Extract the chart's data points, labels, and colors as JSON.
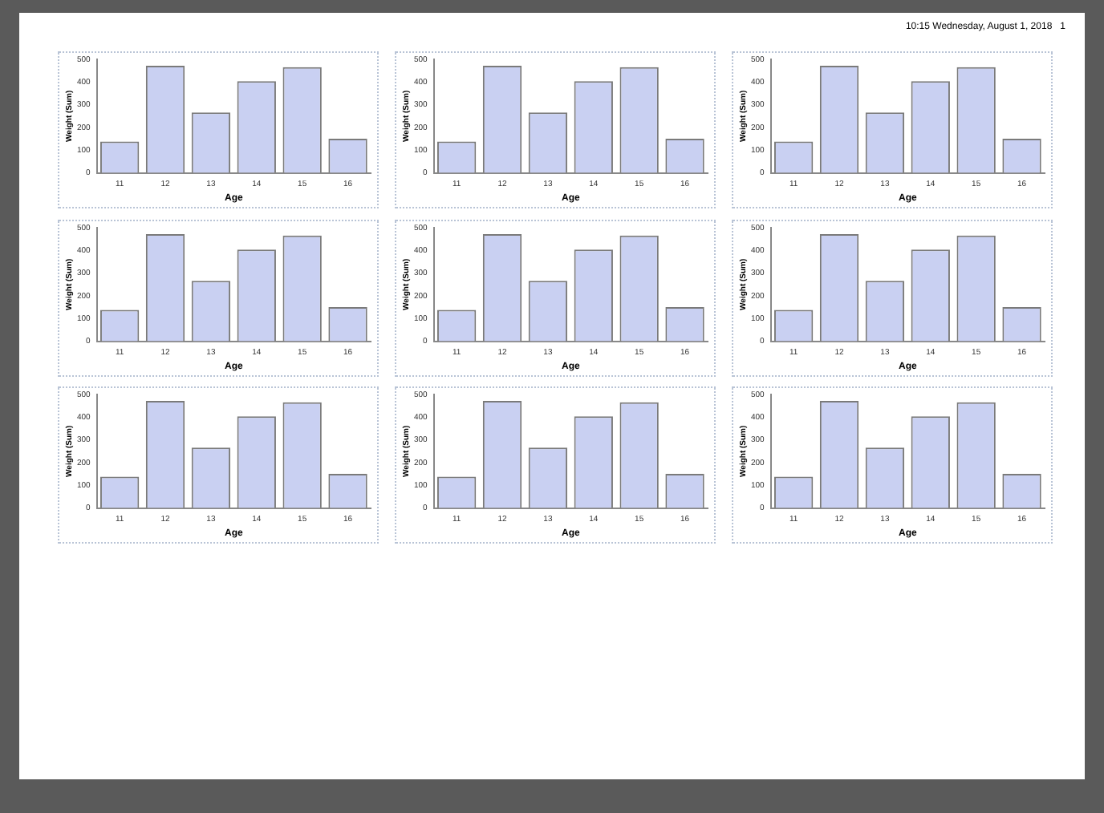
{
  "chart_data": [
    {
      "type": "bar",
      "xlabel": "Age",
      "ylabel": "Weight (Sum)",
      "categories": [
        "11",
        "12",
        "13",
        "14",
        "15",
        "16"
      ],
      "values": [
        138,
        472,
        266,
        404,
        466,
        150
      ],
      "color": "#c9d0f2",
      "ylim": [
        0,
        500
      ],
      "yticks": [
        0,
        100,
        200,
        300,
        400,
        500
      ],
      "grid": false,
      "legend": false,
      "annotations": [
        "10:15 Wednesday, August 1, 2018   1"
      ]
    },
    {
      "type": "bar",
      "xlabel": "Age",
      "ylabel": "Weight (Sum)",
      "categories": [
        "11",
        "12",
        "13",
        "14",
        "15",
        "16"
      ],
      "values": [
        138,
        472,
        266,
        404,
        466,
        150
      ],
      "color": "#c9d0f2",
      "ylim": [
        0,
        500
      ],
      "yticks": [
        0,
        100,
        200,
        300,
        400,
        500
      ],
      "grid": false,
      "legend": false
    },
    {
      "type": "bar",
      "xlabel": "Age",
      "ylabel": "Weight (Sum)",
      "categories": [
        "11",
        "12",
        "13",
        "14",
        "15",
        "16"
      ],
      "values": [
        138,
        472,
        266,
        404,
        466,
        150
      ],
      "color": "#c9d0f2",
      "ylim": [
        0,
        500
      ],
      "yticks": [
        0,
        100,
        200,
        300,
        400,
        500
      ],
      "grid": false,
      "legend": false
    },
    {
      "type": "bar",
      "xlabel": "Age",
      "ylabel": "Weight (Sum)",
      "categories": [
        "11",
        "12",
        "13",
        "14",
        "15",
        "16"
      ],
      "values": [
        138,
        472,
        266,
        404,
        466,
        150
      ],
      "color": "#c9d0f2",
      "ylim": [
        0,
        500
      ],
      "yticks": [
        0,
        100,
        200,
        300,
        400,
        500
      ],
      "grid": false,
      "legend": false
    },
    {
      "type": "bar",
      "xlabel": "Age",
      "ylabel": "Weight (Sum)",
      "categories": [
        "11",
        "12",
        "13",
        "14",
        "15",
        "16"
      ],
      "values": [
        138,
        472,
        266,
        404,
        466,
        150
      ],
      "color": "#c9d0f2",
      "ylim": [
        0,
        500
      ],
      "yticks": [
        0,
        100,
        200,
        300,
        400,
        500
      ],
      "grid": false,
      "legend": false
    },
    {
      "type": "bar",
      "xlabel": "Age",
      "ylabel": "Weight (Sum)",
      "categories": [
        "11",
        "12",
        "13",
        "14",
        "15",
        "16"
      ],
      "values": [
        138,
        472,
        266,
        404,
        466,
        150
      ],
      "color": "#c9d0f2",
      "ylim": [
        0,
        500
      ],
      "yticks": [
        0,
        100,
        200,
        300,
        400,
        500
      ],
      "grid": false,
      "legend": false
    },
    {
      "type": "bar",
      "xlabel": "Age",
      "ylabel": "Weight (Sum)",
      "categories": [
        "11",
        "12",
        "13",
        "14",
        "15",
        "16"
      ],
      "values": [
        138,
        472,
        266,
        404,
        466,
        150
      ],
      "color": "#c9d0f2",
      "ylim": [
        0,
        500
      ],
      "yticks": [
        0,
        100,
        200,
        300,
        400,
        500
      ],
      "grid": false,
      "legend": false
    },
    {
      "type": "bar",
      "xlabel": "Age",
      "ylabel": "Weight (Sum)",
      "categories": [
        "11",
        "12",
        "13",
        "14",
        "15",
        "16"
      ],
      "values": [
        138,
        472,
        266,
        404,
        466,
        150
      ],
      "color": "#c9d0f2",
      "ylim": [
        0,
        500
      ],
      "yticks": [
        0,
        100,
        200,
        300,
        400,
        500
      ],
      "grid": false,
      "legend": false
    },
    {
      "type": "bar",
      "xlabel": "Age",
      "ylabel": "Weight (Sum)",
      "categories": [
        "11",
        "12",
        "13",
        "14",
        "15",
        "16"
      ],
      "values": [
        138,
        472,
        266,
        404,
        466,
        150
      ],
      "color": "#c9d0f2",
      "ylim": [
        0,
        500
      ],
      "yticks": [
        0,
        100,
        200,
        300,
        400,
        500
      ],
      "grid": false,
      "legend": false
    }
  ]
}
